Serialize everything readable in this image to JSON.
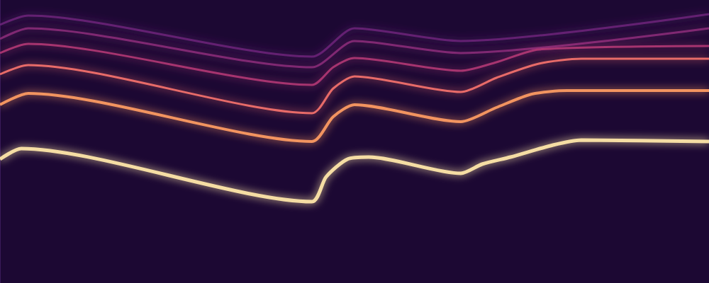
{
  "chart_data": {
    "type": "line",
    "xlim": [
      0,
      1000
    ],
    "ylim": [
      0,
      400
    ],
    "grid": false,
    "tick_labels": false,
    "series": [
      {
        "color": "#fde5a8",
        "x": [
          0,
          30,
          440,
          460,
          490,
          520,
          650,
          680,
          720,
          780,
          820,
          1000
        ],
        "values": [
          175,
          190,
          115,
          150,
          175,
          178,
          155,
          168,
          178,
          195,
          202,
          200
        ]
      },
      {
        "color": "#fb9a62",
        "x": [
          0,
          40,
          440,
          470,
          500,
          650,
          700,
          750,
          800,
          1000
        ],
        "values": [
          252,
          268,
          200,
          235,
          252,
          228,
          248,
          267,
          272,
          272
        ]
      },
      {
        "color": "#f0706a",
        "x": [
          0,
          40,
          440,
          470,
          500,
          650,
          700,
          760,
          820,
          1000
        ],
        "values": [
          295,
          308,
          240,
          275,
          292,
          270,
          290,
          310,
          317,
          317
        ]
      },
      {
        "color": "#c23c7a",
        "x": [
          0,
          40,
          440,
          470,
          500,
          650,
          700,
          760,
          1000
        ],
        "values": [
          325,
          338,
          280,
          305,
          318,
          300,
          312,
          330,
          335
        ]
      },
      {
        "color": "#94307f",
        "x": [
          0,
          40,
          440,
          500,
          650,
          1000
        ],
        "values": [
          345,
          360,
          305,
          342,
          325,
          360
        ]
      },
      {
        "color": "#722580",
        "x": [
          0,
          40,
          440,
          500,
          650,
          1000
        ],
        "values": [
          365,
          378,
          320,
          360,
          342,
          380
        ]
      }
    ]
  }
}
